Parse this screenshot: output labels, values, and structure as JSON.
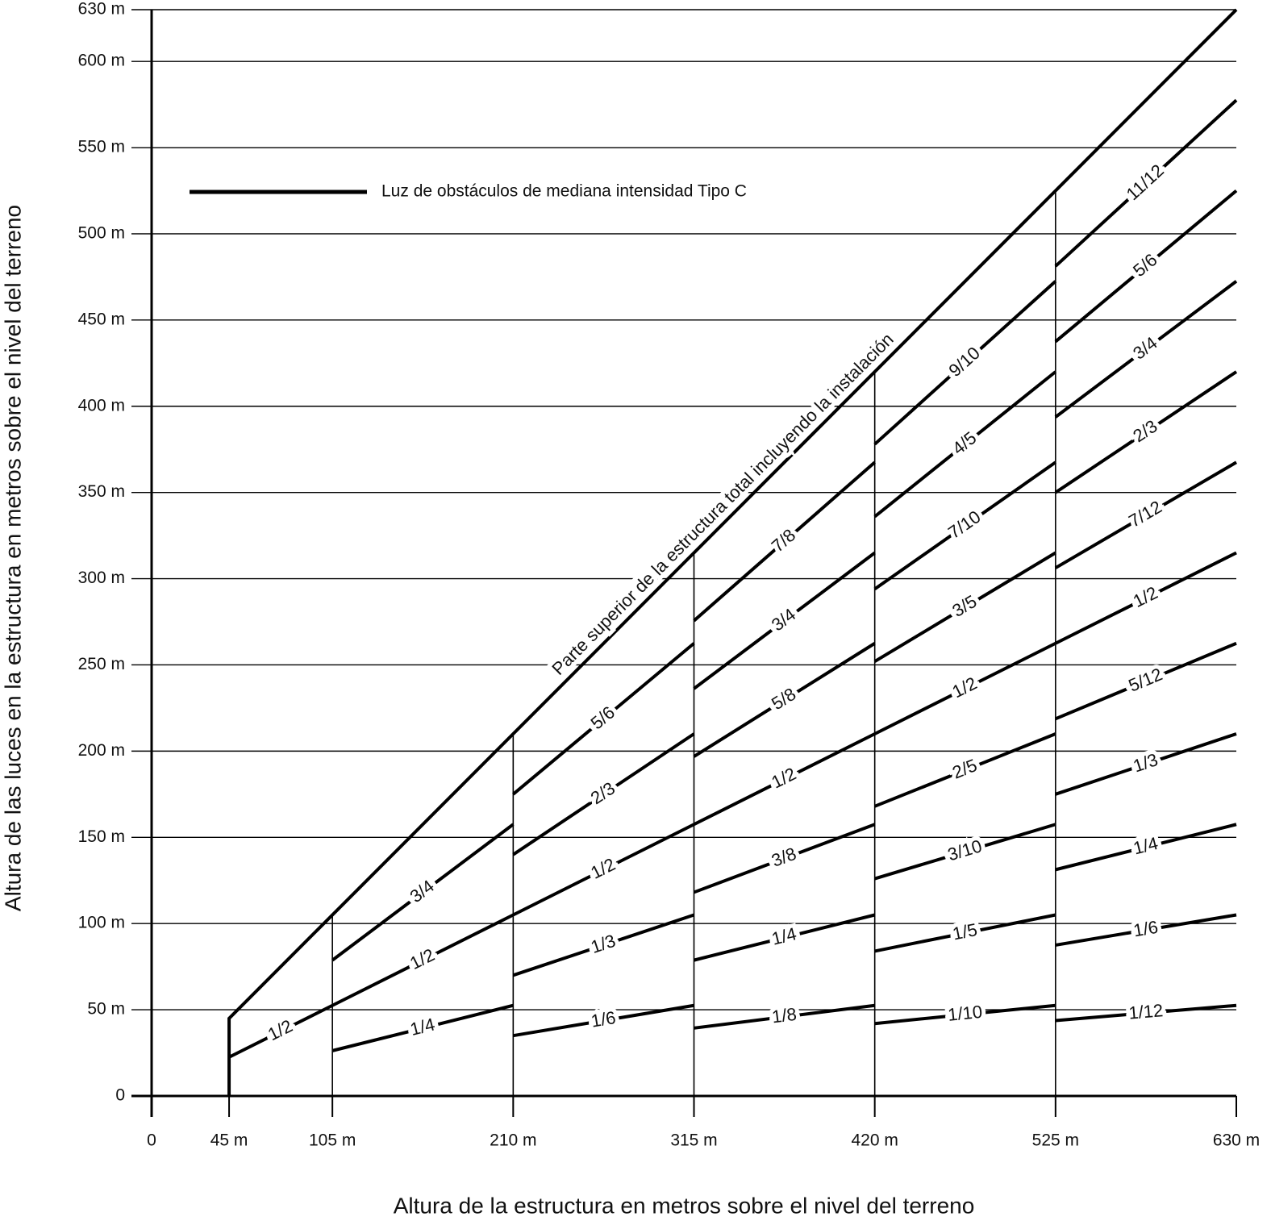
{
  "chart_data": {
    "type": "line",
    "xlabel": "Altura de la estructura en metros sobre el nivel del terreno",
    "ylabel": "Altura de las luces en la estructura en metros sobre el nivel del terreno",
    "annotation": "Parte superior de la estructura total incluyendo la instalación",
    "xlim": [
      0,
      630
    ],
    "ylim": [
      0,
      630
    ],
    "xticks": [
      0,
      {
        "value": 45,
        "label": "45 m"
      },
      {
        "value": 105,
        "label": "105 m"
      },
      {
        "value": 210,
        "label": "210 m"
      },
      {
        "value": 315,
        "label": "315 m"
      },
      {
        "value": 420,
        "label": "420 m"
      },
      {
        "value": 525,
        "label": "525 m"
      },
      {
        "value": 630,
        "label": "630 m"
      }
    ],
    "yticks": [
      0,
      {
        "value": 50,
        "label": "50 m"
      },
      {
        "value": 100,
        "label": "100 m"
      },
      {
        "value": 150,
        "label": "150 m"
      },
      {
        "value": 200,
        "label": "200 m"
      },
      {
        "value": 250,
        "label": "250 m"
      },
      {
        "value": 300,
        "label": "300 m"
      },
      {
        "value": 350,
        "label": "350 m"
      },
      {
        "value": 400,
        "label": "400 m"
      },
      {
        "value": 450,
        "label": "450 m"
      },
      {
        "value": 500,
        "label": "500 m"
      },
      {
        "value": 550,
        "label": "550 m"
      },
      {
        "value": 600,
        "label": "600 m"
      },
      {
        "value": 630,
        "label": "630 m"
      }
    ],
    "grid": true,
    "dividers": [
      105,
      210,
      315,
      420,
      525
    ],
    "series": [
      {
        "name": "Luz de obstáculos de mediana intensidad Tipo C",
        "color": "#000000",
        "x": [
          45,
          45,
          630
        ],
        "values": [
          0,
          45,
          630
        ]
      },
      {
        "label": "1/2",
        "x": [
          45,
          105
        ],
        "values": [
          22.5,
          52.5
        ]
      },
      {
        "label": "3/4",
        "x": [
          105,
          210
        ],
        "values": [
          78.75,
          157.5
        ]
      },
      {
        "label": "1/2",
        "x": [
          105,
          210
        ],
        "values": [
          52.5,
          105
        ]
      },
      {
        "label": "1/4",
        "x": [
          105,
          210
        ],
        "values": [
          26.25,
          52.5
        ]
      },
      {
        "label": "5/6",
        "x": [
          210,
          315
        ],
        "values": [
          175,
          262.5
        ]
      },
      {
        "label": "2/3",
        "x": [
          210,
          315
        ],
        "values": [
          140,
          210
        ]
      },
      {
        "label": "1/2",
        "x": [
          210,
          315
        ],
        "values": [
          105,
          157.5
        ]
      },
      {
        "label": "1/3",
        "x": [
          210,
          315
        ],
        "values": [
          70,
          105
        ]
      },
      {
        "label": "1/6",
        "x": [
          210,
          315
        ],
        "values": [
          35,
          52.5
        ]
      },
      {
        "label": "7/8",
        "x": [
          315,
          420
        ],
        "values": [
          275.625,
          367.5
        ]
      },
      {
        "label": "3/4",
        "x": [
          315,
          420
        ],
        "values": [
          236.25,
          315
        ]
      },
      {
        "label": "5/8",
        "x": [
          315,
          420
        ],
        "values": [
          196.875,
          262.5
        ]
      },
      {
        "label": "1/2",
        "x": [
          315,
          420
        ],
        "values": [
          157.5,
          210
        ]
      },
      {
        "label": "3/8",
        "x": [
          315,
          420
        ],
        "values": [
          118.125,
          157.5
        ]
      },
      {
        "label": "1/4",
        "x": [
          315,
          420
        ],
        "values": [
          78.75,
          105
        ]
      },
      {
        "label": "1/8",
        "x": [
          315,
          420
        ],
        "values": [
          39.375,
          52.5
        ]
      },
      {
        "label": "9/10",
        "x": [
          420,
          525
        ],
        "values": [
          378,
          472.5
        ]
      },
      {
        "label": "4/5",
        "x": [
          420,
          525
        ],
        "values": [
          336,
          420
        ]
      },
      {
        "label": "7/10",
        "x": [
          420,
          525
        ],
        "values": [
          294,
          367.5
        ]
      },
      {
        "label": "3/5",
        "x": [
          420,
          525
        ],
        "values": [
          252,
          315
        ]
      },
      {
        "label": "1/2",
        "x": [
          420,
          525
        ],
        "values": [
          210,
          262.5
        ]
      },
      {
        "label": "2/5",
        "x": [
          420,
          525
        ],
        "values": [
          168,
          210
        ]
      },
      {
        "label": "3/10",
        "x": [
          420,
          525
        ],
        "values": [
          126,
          157.5
        ]
      },
      {
        "label": "1/5",
        "x": [
          420,
          525
        ],
        "values": [
          84,
          105
        ]
      },
      {
        "label": "1/10",
        "x": [
          420,
          525
        ],
        "values": [
          42,
          52.5
        ]
      },
      {
        "label": "11/12",
        "x": [
          525,
          630
        ],
        "values": [
          481.25,
          577.5
        ]
      },
      {
        "label": "5/6",
        "x": [
          525,
          630
        ],
        "values": [
          437.5,
          525
        ]
      },
      {
        "label": "3/4",
        "x": [
          525,
          630
        ],
        "values": [
          393.75,
          472.5
        ]
      },
      {
        "label": "2/3",
        "x": [
          525,
          630
        ],
        "values": [
          350,
          420
        ]
      },
      {
        "label": "7/12",
        "x": [
          525,
          630
        ],
        "values": [
          306.25,
          367.5
        ]
      },
      {
        "label": "1/2",
        "x": [
          525,
          630
        ],
        "values": [
          262.5,
          315
        ]
      },
      {
        "label": "5/12",
        "x": [
          525,
          630
        ],
        "values": [
          218.75,
          262.5
        ]
      },
      {
        "label": "1/3",
        "x": [
          525,
          630
        ],
        "values": [
          175,
          210
        ]
      },
      {
        "label": "1/4",
        "x": [
          525,
          630
        ],
        "values": [
          131.25,
          157.5
        ]
      },
      {
        "label": "1/6",
        "x": [
          525,
          630
        ],
        "values": [
          87.5,
          105
        ]
      },
      {
        "label": "1/12",
        "x": [
          525,
          630
        ],
        "values": [
          43.75,
          52.5
        ]
      }
    ]
  }
}
